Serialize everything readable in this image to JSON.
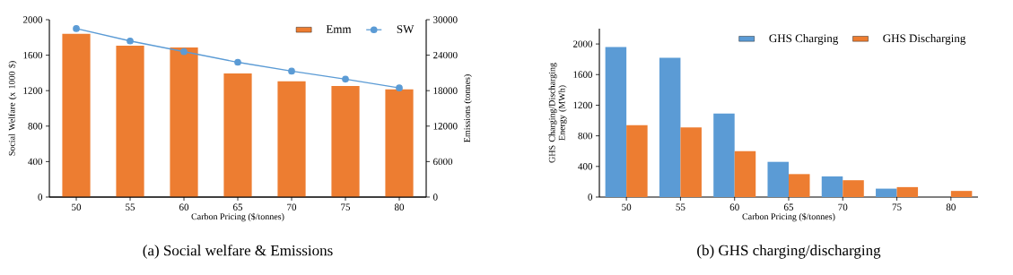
{
  "chart_data": [
    {
      "type": "bar",
      "title": "(a) Social welfare & Emissions",
      "xlabel": "Carbon Pricing ($/tonnes)",
      "ylabel": "Social Welfare  (x 1000 $)",
      "y2label": "Emissions (tonnes)",
      "categories": [
        "50",
        "55",
        "60",
        "65",
        "70",
        "75",
        "80"
      ],
      "series": [
        {
          "name": "Emm",
          "type": "bar",
          "axis": "y2",
          "color": "#ed7d31",
          "values": [
            27600,
            25600,
            25300,
            20900,
            19600,
            18800,
            18200
          ]
        },
        {
          "name": "SW",
          "type": "line",
          "color": "#5b9bd5",
          "marker": "circle",
          "values": [
            1900,
            1760,
            1640,
            1520,
            1420,
            1330,
            1230
          ]
        }
      ],
      "ylim": [
        0,
        2000
      ],
      "yticks": [
        0,
        400,
        800,
        1200,
        1600,
        2000
      ],
      "y2lim": [
        0,
        30000
      ],
      "y2ticks": [
        0,
        6000,
        12000,
        18000,
        24000,
        30000
      ],
      "legend": "top right"
    },
    {
      "type": "bar",
      "title": "(b) GHS charging/discharging",
      "xlabel": "Carbon Pricing ($/tonnes)",
      "ylabel": "GHS Charging/Discharging Energy (MWh)",
      "categories": [
        "50",
        "55",
        "60",
        "65",
        "70",
        "75",
        "80"
      ],
      "series": [
        {
          "name": "GHS Charging",
          "color": "#5b9bd5",
          "values": [
            1960,
            1820,
            1090,
            460,
            270,
            110,
            null
          ]
        },
        {
          "name": "GHS Discharging",
          "color": "#ed7d31",
          "values": [
            940,
            910,
            600,
            300,
            220,
            130,
            80
          ]
        }
      ],
      "ylim": [
        0,
        2200
      ],
      "yticks": [
        0,
        400,
        800,
        1200,
        1600,
        2000
      ],
      "legend": "top right"
    }
  ]
}
